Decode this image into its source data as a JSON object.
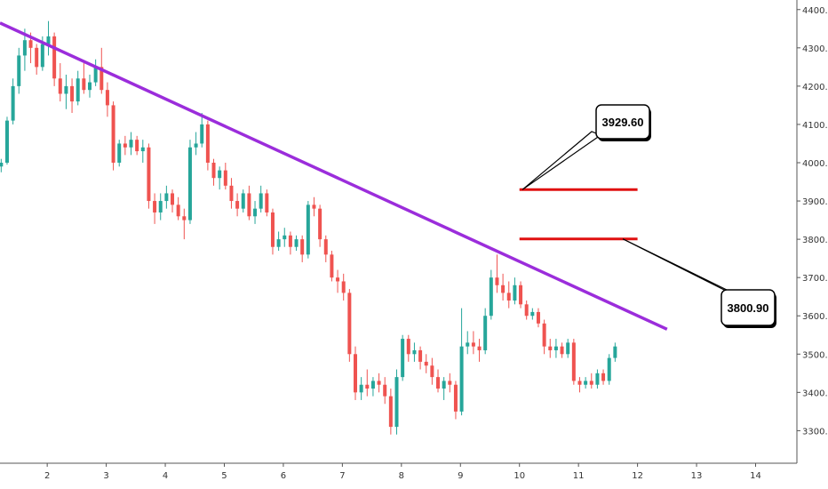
{
  "chart_data": {
    "type": "candlestick",
    "title": "",
    "xlabel": "",
    "ylabel": "",
    "x_ticks": [
      "2",
      "3",
      "4",
      "5",
      "6",
      "7",
      "8",
      "9",
      "10",
      "11",
      "12",
      "13",
      "14"
    ],
    "y_ticks": [
      "3300.0",
      "3400.0",
      "3500.0",
      "3600.0",
      "3700.0",
      "3800.0",
      "3900.0",
      "4000.0",
      "4100.0",
      "4200.0",
      "4300.0",
      "4400.0"
    ],
    "xlim": [
      1.2,
      14.7
    ],
    "ylim": [
      3215,
      4425
    ],
    "grid": false,
    "colors": {
      "up": "#26a69a",
      "down": "#ef5350",
      "trendline": "#9b2ddb",
      "level": "#e01010",
      "axis": "#555555"
    },
    "series": [
      {
        "type": "ohlc",
        "values": [
          [
            1.22,
            3990,
            4010,
            3975,
            4000
          ],
          [
            1.32,
            4000,
            4120,
            3995,
            4110
          ],
          [
            1.42,
            4110,
            4220,
            4100,
            4200
          ],
          [
            1.52,
            4200,
            4300,
            4180,
            4280
          ],
          [
            1.62,
            4280,
            4350,
            4240,
            4320
          ],
          [
            1.72,
            4320,
            4340,
            4260,
            4300
          ],
          [
            1.82,
            4300,
            4310,
            4230,
            4250
          ],
          [
            1.92,
            4250,
            4330,
            4240,
            4310
          ],
          [
            2.02,
            4310,
            4370,
            4280,
            4330
          ],
          [
            2.12,
            4330,
            4340,
            4200,
            4220
          ],
          [
            2.22,
            4220,
            4260,
            4160,
            4180
          ],
          [
            2.32,
            4180,
            4230,
            4140,
            4200
          ],
          [
            2.42,
            4200,
            4220,
            4130,
            4160
          ],
          [
            2.52,
            4160,
            4240,
            4150,
            4220
          ],
          [
            2.62,
            4220,
            4260,
            4180,
            4190
          ],
          [
            2.72,
            4190,
            4230,
            4170,
            4210
          ],
          [
            2.82,
            4210,
            4270,
            4200,
            4250
          ],
          [
            2.92,
            4250,
            4300,
            4180,
            4190
          ],
          [
            3.02,
            4190,
            4210,
            4120,
            4150
          ],
          [
            3.12,
            4150,
            4160,
            3980,
            4000
          ],
          [
            3.22,
            4000,
            4060,
            3990,
            4050
          ],
          [
            3.32,
            4050,
            4070,
            4020,
            4040
          ],
          [
            3.42,
            4040,
            4080,
            4020,
            4060
          ],
          [
            3.52,
            4060,
            4070,
            4020,
            4030
          ],
          [
            3.62,
            4030,
            4060,
            4000,
            4040
          ],
          [
            3.72,
            4040,
            4050,
            3880,
            3900
          ],
          [
            3.82,
            3900,
            3920,
            3840,
            3870
          ],
          [
            3.92,
            3870,
            3920,
            3850,
            3900
          ],
          [
            4.02,
            3900,
            3940,
            3880,
            3920
          ],
          [
            4.12,
            3920,
            3930,
            3870,
            3890
          ],
          [
            4.22,
            3890,
            3910,
            3850,
            3860
          ],
          [
            4.32,
            3860,
            3880,
            3800,
            3850
          ],
          [
            4.42,
            3850,
            4060,
            3840,
            4040
          ],
          [
            4.52,
            4040,
            4080,
            4020,
            4050
          ],
          [
            4.62,
            4050,
            4130,
            4040,
            4100
          ],
          [
            4.72,
            4100,
            4110,
            3980,
            4000
          ],
          [
            4.82,
            4000,
            4010,
            3940,
            3960
          ],
          [
            4.92,
            3960,
            3990,
            3930,
            3980
          ],
          [
            5.02,
            3980,
            4000,
            3930,
            3940
          ],
          [
            5.12,
            3940,
            3960,
            3880,
            3900
          ],
          [
            5.22,
            3900,
            3920,
            3860,
            3880
          ],
          [
            5.32,
            3880,
            3930,
            3870,
            3920
          ],
          [
            5.42,
            3920,
            3940,
            3850,
            3860
          ],
          [
            5.52,
            3860,
            3900,
            3840,
            3880
          ],
          [
            5.62,
            3880,
            3940,
            3870,
            3920
          ],
          [
            5.72,
            3920,
            3930,
            3860,
            3870
          ],
          [
            5.82,
            3870,
            3880,
            3760,
            3780
          ],
          [
            5.92,
            3780,
            3820,
            3770,
            3800
          ],
          [
            6.02,
            3800,
            3830,
            3780,
            3810
          ],
          [
            6.12,
            3810,
            3820,
            3760,
            3780
          ],
          [
            6.22,
            3780,
            3810,
            3770,
            3800
          ],
          [
            6.32,
            3800,
            3810,
            3740,
            3760
          ],
          [
            6.42,
            3760,
            3900,
            3750,
            3890
          ],
          [
            6.52,
            3890,
            3910,
            3860,
            3880
          ],
          [
            6.62,
            3880,
            3890,
            3780,
            3800
          ],
          [
            6.72,
            3800,
            3810,
            3740,
            3760
          ],
          [
            6.82,
            3760,
            3770,
            3690,
            3700
          ],
          [
            6.92,
            3700,
            3720,
            3660,
            3690
          ],
          [
            7.02,
            3690,
            3710,
            3640,
            3660
          ],
          [
            7.12,
            3660,
            3670,
            3480,
            3500
          ],
          [
            7.22,
            3500,
            3520,
            3380,
            3400
          ],
          [
            7.32,
            3400,
            3440,
            3380,
            3420
          ],
          [
            7.42,
            3420,
            3460,
            3390,
            3410
          ],
          [
            7.52,
            3410,
            3440,
            3390,
            3430
          ],
          [
            7.62,
            3430,
            3450,
            3400,
            3420
          ],
          [
            7.72,
            3420,
            3440,
            3370,
            3390
          ],
          [
            7.82,
            3390,
            3410,
            3290,
            3310
          ],
          [
            7.92,
            3310,
            3460,
            3290,
            3440
          ],
          [
            8.02,
            3440,
            3550,
            3430,
            3540
          ],
          [
            8.12,
            3540,
            3550,
            3480,
            3500
          ],
          [
            8.22,
            3500,
            3530,
            3480,
            3510
          ],
          [
            8.32,
            3510,
            3520,
            3460,
            3480
          ],
          [
            8.42,
            3480,
            3500,
            3450,
            3470
          ],
          [
            8.52,
            3470,
            3490,
            3420,
            3440
          ],
          [
            8.62,
            3440,
            3460,
            3400,
            3410
          ],
          [
            8.72,
            3410,
            3440,
            3380,
            3430
          ],
          [
            8.82,
            3430,
            3450,
            3400,
            3420
          ],
          [
            8.92,
            3420,
            3430,
            3330,
            3350
          ],
          [
            9.02,
            3350,
            3620,
            3340,
            3520
          ],
          [
            9.12,
            3520,
            3560,
            3500,
            3530
          ],
          [
            9.22,
            3530,
            3560,
            3500,
            3520
          ],
          [
            9.32,
            3520,
            3540,
            3480,
            3510
          ],
          [
            9.42,
            3510,
            3620,
            3500,
            3600
          ],
          [
            9.52,
            3600,
            3720,
            3590,
            3700
          ],
          [
            9.62,
            3700,
            3760,
            3660,
            3680
          ],
          [
            9.72,
            3680,
            3710,
            3640,
            3660
          ],
          [
            9.82,
            3660,
            3690,
            3620,
            3640
          ],
          [
            9.92,
            3640,
            3700,
            3630,
            3680
          ],
          [
            10.02,
            3680,
            3690,
            3620,
            3630
          ],
          [
            10.12,
            3630,
            3640,
            3590,
            3600
          ],
          [
            10.22,
            3600,
            3620,
            3590,
            3610
          ],
          [
            10.32,
            3610,
            3620,
            3570,
            3580
          ],
          [
            10.42,
            3580,
            3590,
            3500,
            3520
          ],
          [
            10.52,
            3520,
            3540,
            3490,
            3510
          ],
          [
            10.62,
            3510,
            3540,
            3490,
            3520
          ],
          [
            10.72,
            3520,
            3530,
            3490,
            3500
          ],
          [
            10.82,
            3500,
            3540,
            3490,
            3530
          ],
          [
            10.92,
            3530,
            3540,
            3420,
            3430
          ],
          [
            11.02,
            3430,
            3440,
            3400,
            3420
          ],
          [
            11.12,
            3420,
            3440,
            3410,
            3430
          ],
          [
            11.22,
            3430,
            3450,
            3410,
            3420
          ],
          [
            11.32,
            3420,
            3460,
            3410,
            3450
          ],
          [
            11.42,
            3450,
            3460,
            3420,
            3430
          ],
          [
            11.52,
            3430,
            3500,
            3420,
            3490
          ],
          [
            11.62,
            3490,
            3530,
            3480,
            3520
          ]
        ]
      },
      {
        "type": "trendline",
        "values": [
          [
            1.2,
            4365
          ],
          [
            12.5,
            3565
          ]
        ]
      },
      {
        "type": "level",
        "values": [
          [
            10.0,
            3929.6
          ],
          [
            12.0,
            3929.6
          ]
        ]
      },
      {
        "type": "level",
        "values": [
          [
            10.0,
            3800.9
          ],
          [
            12.0,
            3800.9
          ]
        ]
      }
    ],
    "annotations": [
      {
        "text": "3929.60",
        "point": [
          10.05,
          3929.6
        ]
      },
      {
        "text": "3800.90",
        "point": [
          11.75,
          3800.9
        ]
      }
    ]
  }
}
